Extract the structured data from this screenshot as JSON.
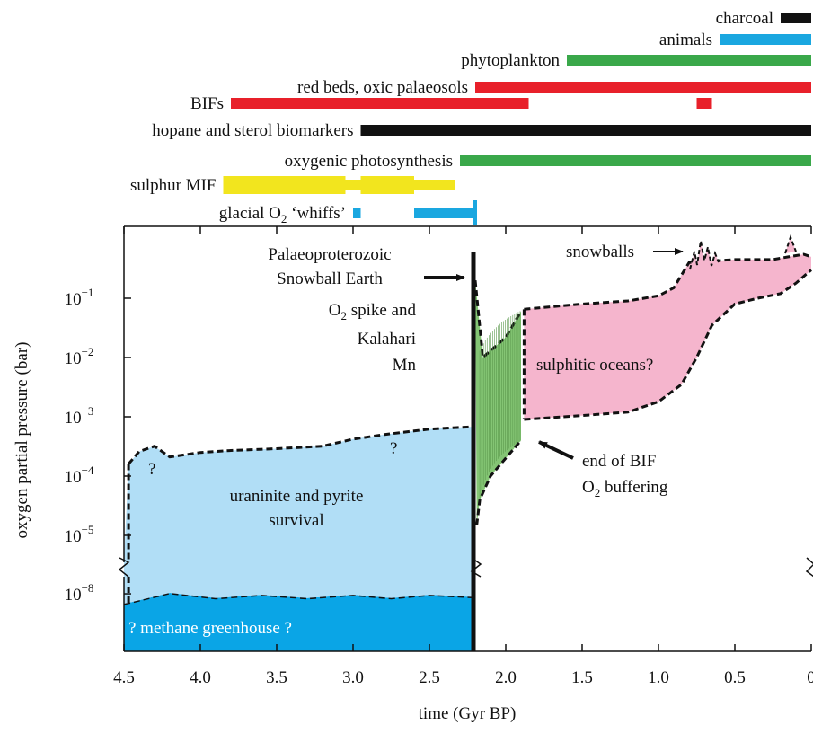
{
  "chart_data": {
    "type": "area",
    "title": "",
    "xlabel": "time (Gyr BP)",
    "ylabel": "oxygen partial pressure (bar)",
    "x_reversed": true,
    "xlim": [
      4.5,
      0
    ],
    "x_ticks": [
      "4.5",
      "4.0",
      "3.5",
      "3.0",
      "2.5",
      "2.0",
      "1.5",
      "1.0",
      "0.5",
      "0"
    ],
    "y_scale": "log (broken axis between 1e-5 and 1e-8)",
    "y_ticks": [
      {
        "base": "10",
        "exp": "−8",
        "value": 1e-08
      },
      {
        "base": "10",
        "exp": "−5",
        "value": 1e-05
      },
      {
        "base": "10",
        "exp": "−4",
        "value": 0.0001
      },
      {
        "base": "10",
        "exp": "−3",
        "value": 0.001
      },
      {
        "base": "10",
        "exp": "−2",
        "value": 0.01
      },
      {
        "base": "10",
        "exp": "−1",
        "value": 0.1
      }
    ],
    "proxies": [
      {
        "label": "charcoal",
        "color": "#111111",
        "segments": [
          [
            0.2,
            0.0
          ]
        ]
      },
      {
        "label": "animals",
        "color": "#1aa7e0",
        "segments": [
          [
            0.6,
            0.0
          ]
        ]
      },
      {
        "label": "phytoplankton",
        "color": "#3aa84a",
        "segments": [
          [
            1.6,
            0.0
          ]
        ]
      },
      {
        "label": "red beds, oxic palaeosols",
        "color": "#e8202a",
        "segments": [
          [
            2.2,
            0.0
          ]
        ]
      },
      {
        "label": "BIFs",
        "color": "#e8202a",
        "segments": [
          [
            3.8,
            1.85
          ],
          [
            0.75,
            0.65
          ]
        ]
      },
      {
        "label": "hopane and sterol biomarkers",
        "color": "#111111",
        "segments": [
          [
            2.95,
            0.0
          ]
        ]
      },
      {
        "label": "oxygenic photosynthesis",
        "color": "#3aa84a",
        "segments": [
          [
            2.3,
            0.0
          ]
        ]
      },
      {
        "label": "sulphur MIF",
        "color": "#f2e51e",
        "segments": [
          [
            3.85,
            2.33
          ]
        ]
      },
      {
        "label_pre": "glacial O",
        "label_sub": "2",
        "label_post": " ‘whiffs’",
        "color": "#1aa7e0",
        "segments": [
          [
            3.0,
            2.95
          ],
          [
            2.6,
            2.2
          ]
        ]
      }
    ],
    "regions": [
      {
        "name": "methane",
        "label": "? methane greenhouse ?",
        "color": "#0aa5e6",
        "upper": [
          [
            4.5,
            6e-09
          ],
          [
            4.45,
            6.5e-09
          ],
          [
            4.2,
            1.05e-08
          ],
          [
            3.9,
            8e-09
          ],
          [
            3.6,
            9.5e-09
          ],
          [
            3.3,
            8e-09
          ],
          [
            3.0,
            9.5e-09
          ],
          [
            2.75,
            8e-09
          ],
          [
            2.5,
            9.5e-09
          ],
          [
            2.22,
            8.5e-09
          ]
        ]
      },
      {
        "name": "archean",
        "label_1": "uraninite and pyrite",
        "label_2": "survival",
        "color": "#b1def6",
        "upper": [
          [
            4.47,
            0.00016
          ],
          [
            4.4,
            0.00026
          ],
          [
            4.3,
            0.00032
          ],
          [
            4.2,
            0.00021
          ],
          [
            4.0,
            0.00025
          ],
          [
            3.8,
            0.00027
          ],
          [
            3.5,
            0.00029
          ],
          [
            3.2,
            0.00032
          ],
          [
            3.0,
            0.00042
          ],
          [
            2.8,
            0.0005
          ],
          [
            2.5,
            0.00062
          ],
          [
            2.22,
            0.00068
          ]
        ]
      },
      {
        "name": "spike",
        "color": "#84c574",
        "upper": [
          [
            2.2,
            0.2
          ],
          [
            2.15,
            0.01
          ],
          [
            2.0,
            0.022
          ],
          [
            1.9,
            0.06
          ]
        ],
        "lower": [
          [
            2.19,
            1.5e-05
          ],
          [
            2.17,
            4e-05
          ],
          [
            2.1,
            0.0001
          ],
          [
            2.0,
            0.0002
          ],
          [
            1.9,
            0.0004
          ]
        ]
      },
      {
        "name": "sulphitic",
        "label": "sulphitic oceans?",
        "color": "#f5b5cd",
        "upper": [
          [
            1.88,
            0.065
          ],
          [
            1.5,
            0.08
          ],
          [
            1.2,
            0.09
          ],
          [
            1.0,
            0.11
          ],
          [
            0.9,
            0.15
          ],
          [
            0.8,
            0.4
          ],
          [
            0.5,
            0.45
          ],
          [
            0.25,
            0.45
          ],
          [
            0.15,
            0.5
          ],
          [
            0.05,
            0.55
          ],
          [
            0.0,
            0.5
          ]
        ],
        "lower": [
          [
            1.88,
            0.0009
          ],
          [
            1.5,
            0.00105
          ],
          [
            1.2,
            0.0012
          ],
          [
            1.0,
            0.0018
          ],
          [
            0.85,
            0.0035
          ],
          [
            0.75,
            0.01
          ],
          [
            0.65,
            0.035
          ],
          [
            0.5,
            0.08
          ],
          [
            0.35,
            0.1
          ],
          [
            0.2,
            0.12
          ],
          [
            0.1,
            0.18
          ],
          [
            0.0,
            0.3
          ]
        ]
      }
    ],
    "annotations": {
      "q1": "?",
      "q2": "?",
      "palaeo_1": "Palaeoproterozoic",
      "palaeo_2": "Snowball Earth",
      "o2_spike_pre": "O",
      "o2_spike_sub": "2",
      "o2_spike_post": " spike and",
      "kalahari": "Kalahari",
      "mn": "Mn",
      "end_bif_1": "end of BIF",
      "end_bif_2_pre": "O",
      "end_bif_2_sub": "2",
      "end_bif_2_post": " buffering",
      "snowballs": "snowballs"
    }
  }
}
